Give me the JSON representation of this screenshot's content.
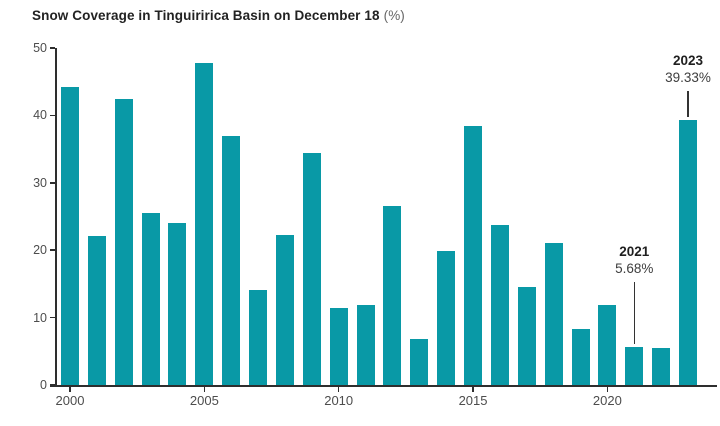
{
  "title": {
    "main": "Snow Coverage in Tinguiririca Basin on December 18",
    "suffix": "(%)"
  },
  "chart_data": {
    "type": "bar",
    "title": "Snow Coverage in Tinguiririca Basin on December 18 (%)",
    "categories": [
      2000,
      2001,
      2002,
      2003,
      2004,
      2005,
      2006,
      2007,
      2008,
      2009,
      2010,
      2011,
      2012,
      2013,
      2014,
      2015,
      2016,
      2017,
      2018,
      2019,
      2020,
      2021,
      2022,
      2023
    ],
    "values": [
      44.2,
      22.1,
      42.4,
      25.5,
      24.0,
      47.8,
      37.0,
      14.1,
      22.3,
      34.4,
      11.4,
      11.9,
      26.6,
      6.8,
      19.9,
      38.5,
      23.8,
      14.5,
      21.0,
      8.3,
      11.9,
      5.68,
      5.5,
      39.33
    ],
    "xlabel": "",
    "ylabel": "",
    "ylim": [
      0,
      50
    ],
    "yticks": [
      0,
      10,
      20,
      30,
      40,
      50
    ],
    "xticks": [
      2000,
      2005,
      2010,
      2015,
      2020
    ],
    "grid": false,
    "legend": false,
    "bar_color": "#0999a6",
    "annotations": [
      {
        "year": "2021",
        "value_label": "5.68%",
        "value": 5.68
      },
      {
        "year": "2023",
        "value_label": "39.33%",
        "value": 39.33
      }
    ]
  },
  "colors": {
    "bar": "#0999a6",
    "title_main": "#222222",
    "title_suffix": "#666666",
    "axis": "#2e2e2e",
    "tick_label": "#4d4d4d",
    "annotation_year": "#1f1f1f",
    "annotation_value": "#3d3d3d"
  }
}
